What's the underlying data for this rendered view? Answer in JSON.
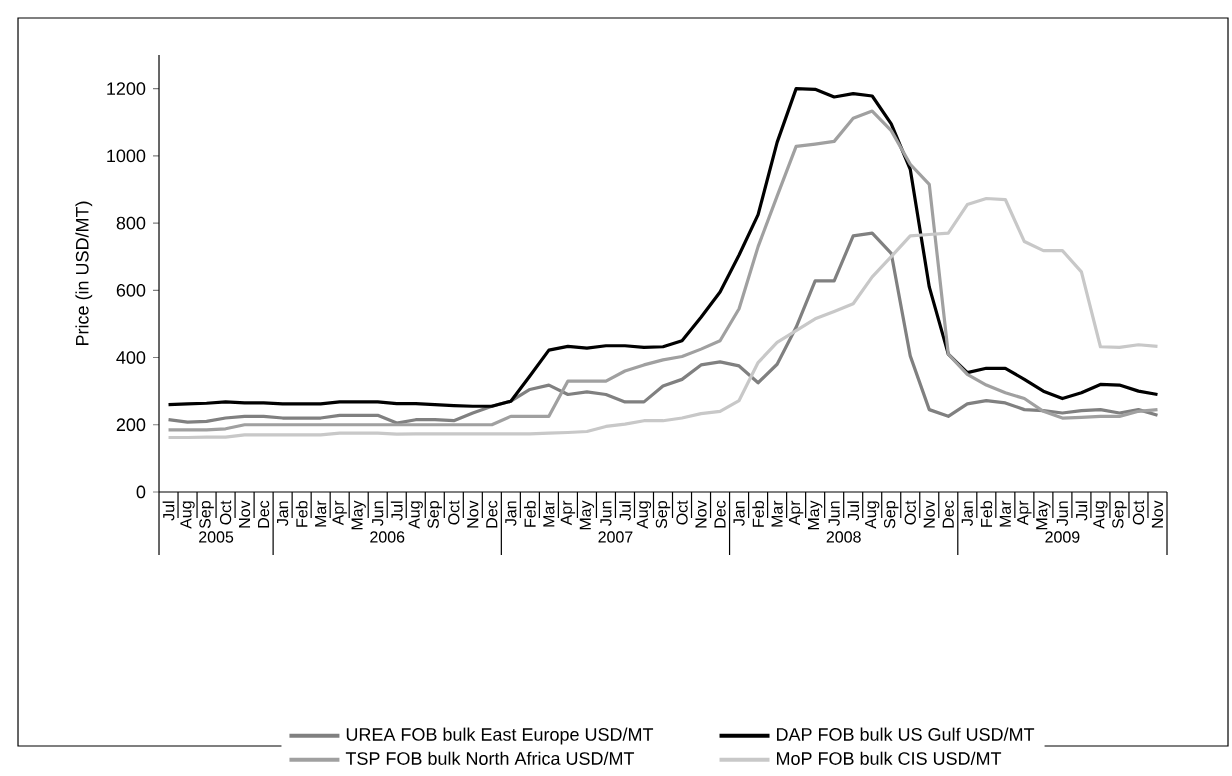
{
  "chart_data": {
    "type": "line",
    "ylabel": "Price (in USD/MT)",
    "categories": [
      "Jul",
      "Aug",
      "Sep",
      "Oct",
      "Nov",
      "Dec",
      "Jan",
      "Feb",
      "Mar",
      "Apr",
      "May",
      "Jun",
      "Jul",
      "Aug",
      "Sep",
      "Oct",
      "Nov",
      "Dec",
      "Jan",
      "Feb",
      "Mar",
      "Apr",
      "May",
      "Jun",
      "Jul",
      "Aug",
      "Sep",
      "Oct",
      "Nov",
      "Dec",
      "Jan",
      "Feb",
      "Mar",
      "Apr",
      "May",
      "Jun",
      "Jul",
      "Aug",
      "Sep",
      "Oct",
      "Nov",
      "Dec",
      "Jan",
      "Feb",
      "Mar",
      "Apr",
      "May",
      "Jun",
      "Jul",
      "Aug",
      "Sep",
      "Oct",
      "Nov"
    ],
    "series": [
      {
        "name": "UREA FOB bulk East Europe USD/MT",
        "color": "#808080",
        "values": [
          215,
          208,
          210,
          220,
          225,
          225,
          220,
          220,
          220,
          228,
          228,
          228,
          205,
          215,
          215,
          212,
          235,
          255,
          270,
          305,
          318,
          290,
          298,
          290,
          268,
          268,
          315,
          335,
          378,
          387,
          375,
          325,
          380,
          490,
          628,
          628,
          762,
          770,
          710,
          405,
          245,
          225,
          262,
          272,
          265,
          245,
          242,
          235,
          242,
          245,
          235,
          245,
          228
        ]
      },
      {
        "name": "DAP FOB bulk US Gulf USD/MT",
        "color": "#000000",
        "values": [
          260,
          262,
          264,
          268,
          265,
          265,
          262,
          262,
          262,
          268,
          268,
          268,
          263,
          263,
          260,
          257,
          255,
          255,
          270,
          345,
          422,
          433,
          428,
          435,
          435,
          430,
          432,
          450,
          520,
          595,
          705,
          825,
          1040,
          1200,
          1198,
          1175,
          1185,
          1178,
          1095,
          960,
          610,
          410,
          355,
          368,
          368,
          335,
          300,
          278,
          295,
          320,
          318,
          300,
          290
        ]
      },
      {
        "name": "TSP FOB bulk North Africa USD/MT",
        "color": "#a0a0a0",
        "values": [
          185,
          185,
          185,
          188,
          200,
          200,
          200,
          200,
          200,
          200,
          200,
          200,
          200,
          200,
          200,
          200,
          200,
          200,
          225,
          225,
          225,
          330,
          330,
          330,
          360,
          378,
          393,
          403,
          425,
          450,
          545,
          730,
          880,
          1028,
          1035,
          1043,
          1112,
          1133,
          1075,
          975,
          915,
          410,
          350,
          318,
          295,
          278,
          240,
          220,
          222,
          225,
          225,
          240,
          245
        ]
      },
      {
        "name": "MoP FOB bulk CIS USD/MT",
        "color": "#c8c8c8",
        "values": [
          162,
          162,
          163,
          163,
          170,
          170,
          170,
          170,
          170,
          175,
          175,
          175,
          172,
          173,
          173,
          173,
          173,
          173,
          173,
          173,
          175,
          177,
          180,
          195,
          202,
          212,
          212,
          220,
          233,
          240,
          272,
          385,
          445,
          480,
          515,
          537,
          560,
          640,
          700,
          762,
          766,
          770,
          855,
          873,
          870,
          745,
          718,
          718,
          655,
          432,
          430,
          438,
          433
        ]
      }
    ],
    "annotations": [
      "2005",
      "2006",
      "2007",
      "2008",
      "2009"
    ],
    "ylim": [
      0,
      1300
    ],
    "yticks": [
      0,
      200,
      400,
      600,
      800,
      1000,
      1200
    ],
    "legend": "bottom",
    "marker": "none"
  }
}
